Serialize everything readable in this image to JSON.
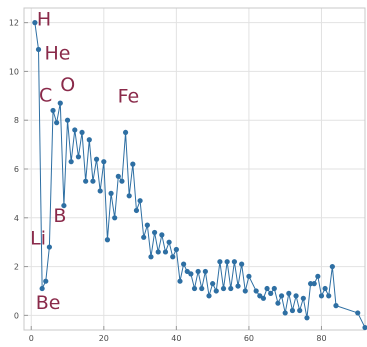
{
  "chart_data": {
    "type": "line",
    "title": "",
    "xlabel": "",
    "ylabel": "",
    "xlim": [
      -2,
      92
    ],
    "ylim": [
      -0.6,
      12.6
    ],
    "x_ticks": [
      0,
      20,
      40,
      60,
      80
    ],
    "y_ticks": [
      0,
      2,
      4,
      6,
      8,
      10,
      12
    ],
    "grid": true,
    "series": [
      {
        "color": "#2e6fa3",
        "points": [
          [
            1,
            12.0
          ],
          [
            2,
            10.9
          ],
          [
            3,
            1.1
          ],
          [
            4,
            1.4
          ],
          [
            5,
            2.8
          ],
          [
            6,
            8.4
          ],
          [
            7,
            7.9
          ],
          [
            8,
            8.7
          ],
          [
            9,
            4.5
          ],
          [
            10,
            8.0
          ],
          [
            11,
            6.3
          ],
          [
            12,
            7.6
          ],
          [
            13,
            6.5
          ],
          [
            14,
            7.5
          ],
          [
            15,
            5.5
          ],
          [
            16,
            7.2
          ],
          [
            17,
            5.5
          ],
          [
            18,
            6.4
          ],
          [
            19,
            5.1
          ],
          [
            20,
            6.3
          ],
          [
            21,
            3.1
          ],
          [
            22,
            5.0
          ],
          [
            23,
            4.0
          ],
          [
            24,
            5.7
          ],
          [
            25,
            5.5
          ],
          [
            26,
            7.5
          ],
          [
            27,
            4.9
          ],
          [
            28,
            6.2
          ],
          [
            29,
            4.3
          ],
          [
            30,
            4.7
          ],
          [
            31,
            3.2
          ],
          [
            32,
            3.7
          ],
          [
            33,
            2.4
          ],
          [
            34,
            3.4
          ],
          [
            35,
            2.6
          ],
          [
            36,
            3.3
          ],
          [
            37,
            2.6
          ],
          [
            38,
            3.0
          ],
          [
            39,
            2.4
          ],
          [
            40,
            2.7
          ],
          [
            41,
            1.4
          ],
          [
            42,
            2.1
          ],
          [
            43,
            1.8
          ],
          [
            44,
            1.7
          ],
          [
            45,
            1.1
          ],
          [
            46,
            1.8
          ],
          [
            47,
            1.1
          ],
          [
            48,
            1.8
          ],
          [
            49,
            0.8
          ],
          [
            50,
            1.3
          ],
          [
            51,
            1.0
          ],
          [
            52,
            2.2
          ],
          [
            53,
            1.1
          ],
          [
            54,
            2.2
          ],
          [
            55,
            1.1
          ],
          [
            56,
            2.2
          ],
          [
            57,
            1.2
          ],
          [
            58,
            2.1
          ],
          [
            59,
            1.0
          ],
          [
            60,
            1.6
          ],
          [
            62,
            1.0
          ],
          [
            63,
            0.8
          ],
          [
            64,
            0.7
          ],
          [
            65,
            1.1
          ],
          [
            66,
            0.9
          ],
          [
            67,
            1.1
          ],
          [
            68,
            0.5
          ],
          [
            69,
            0.8
          ],
          [
            70,
            0.1
          ],
          [
            71,
            0.9
          ],
          [
            72,
            0.2
          ],
          [
            73,
            0.8
          ],
          [
            74,
            0.2
          ],
          [
            75,
            0.7
          ],
          [
            76,
            -0.1
          ],
          [
            77,
            1.3
          ],
          [
            78,
            1.3
          ],
          [
            79,
            1.6
          ],
          [
            80,
            0.8
          ],
          [
            81,
            1.1
          ],
          [
            82,
            0.8
          ],
          [
            83,
            2.0
          ],
          [
            84,
            0.4
          ],
          [
            90,
            0.1
          ],
          [
            92,
            -0.5
          ]
        ]
      }
    ],
    "annotations": [
      {
        "text": "H",
        "x": 1,
        "y": 12.0
      },
      {
        "text": "He",
        "x": 2,
        "y": 10.9
      },
      {
        "text": "Li",
        "x": 3,
        "y": 1.1
      },
      {
        "text": "Be",
        "x": 4,
        "y": 1.4
      },
      {
        "text": "B",
        "x": 5,
        "y": 2.8
      },
      {
        "text": "C",
        "x": 6,
        "y": 8.4
      },
      {
        "text": "O",
        "x": 8,
        "y": 8.7
      },
      {
        "text": "Fe",
        "x": 26,
        "y": 7.5
      }
    ]
  }
}
